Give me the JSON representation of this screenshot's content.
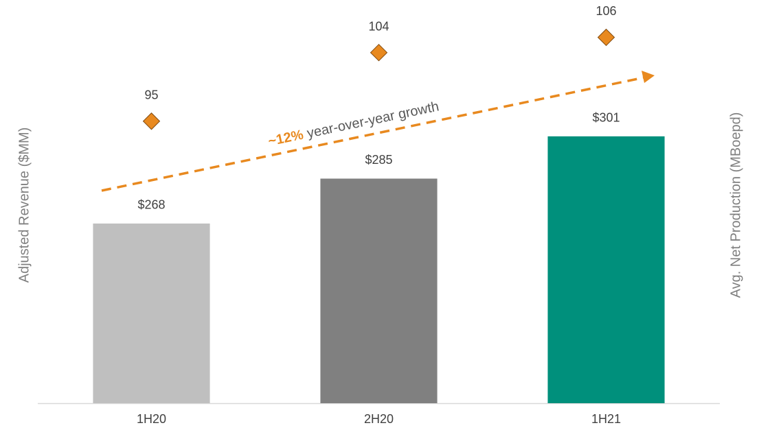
{
  "chart_data": {
    "type": "bar",
    "categories": [
      "1H20",
      "2H20",
      "1H21"
    ],
    "ylabel": "Adjusted Revenue ($MM)",
    "y2label": "Avg. Net Production (MBoepd)",
    "ylim": [
      200,
      350
    ],
    "y2lim": [
      58,
      110
    ],
    "series": [
      {
        "type": "bar",
        "values": [
          268,
          285,
          301
        ],
        "value_labels": [
          "$268",
          "$285",
          "$301"
        ],
        "colors": [
          "#bfbfbf",
          "#808080",
          "#00907c"
        ]
      },
      {
        "type": "scatter",
        "axis": "y2",
        "color": "#e8891f",
        "values": [
          95,
          104,
          106
        ]
      }
    ],
    "annotations": [
      {
        "text": "~12%",
        "color": "#e8891f"
      },
      {
        "text": "year-over-year growth",
        "color": "#595959"
      }
    ]
  }
}
